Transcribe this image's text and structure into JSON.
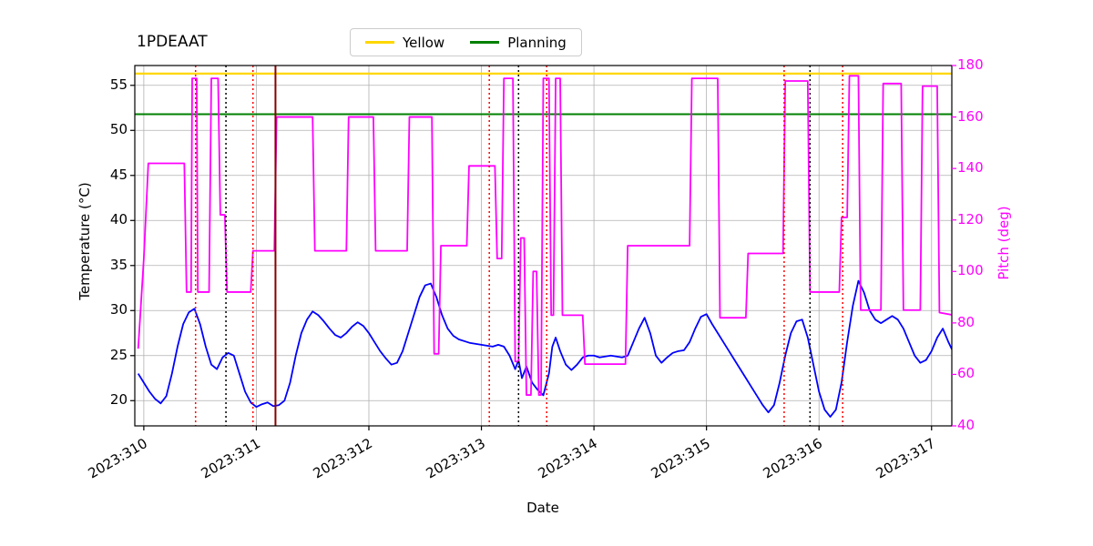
{
  "chart_data": {
    "type": "line",
    "title": "1PDEAAT",
    "xlabel": "Date",
    "ylabel_left": "Temperature (°C)",
    "ylabel_right": "Pitch (deg)",
    "legend": {
      "entries": [
        {
          "label": "Yellow",
          "color": "#ffd700"
        },
        {
          "label": "Planning",
          "color": "#008000"
        }
      ]
    },
    "axes": {
      "x": {
        "lim": [
          309.92,
          317.18
        ],
        "ticks": [
          310,
          311,
          312,
          313,
          314,
          315,
          316,
          317
        ],
        "tick_labels": [
          "2023:310",
          "2023:311",
          "2023:312",
          "2023:313",
          "2023:314",
          "2023:315",
          "2023:316",
          "2023:317"
        ]
      },
      "y_left": {
        "lim": [
          17.2,
          57.2
        ],
        "ticks": [
          20,
          25,
          30,
          35,
          40,
          45,
          50,
          55
        ],
        "color": "#000000"
      },
      "y_right": {
        "lim": [
          40,
          180
        ],
        "ticks": [
          40,
          60,
          80,
          100,
          120,
          140,
          160,
          180
        ],
        "color": "#ff00ff"
      }
    },
    "grid": {
      "on": true,
      "color": "#b0b0b0"
    },
    "hlines": [
      {
        "name": "Yellow",
        "y": 56.3,
        "color": "#ffd700",
        "width": 2.2
      },
      {
        "name": "Planning",
        "y": 51.8,
        "color": "#008000",
        "width": 2
      }
    ],
    "vlines": [
      {
        "x": 310.46,
        "color": "#ff0000",
        "style": "dotted"
      },
      {
        "x": 310.73,
        "color": "#000000",
        "style": "dotted"
      },
      {
        "x": 310.97,
        "color": "#ff0000",
        "style": "dotted"
      },
      {
        "x": 311.17,
        "color": "#8b0000",
        "style": "solid"
      },
      {
        "x": 313.07,
        "color": "#ff0000",
        "style": "dotted"
      },
      {
        "x": 313.33,
        "color": "#000000",
        "style": "dotted"
      },
      {
        "x": 313.58,
        "color": "#ff0000",
        "style": "dotted"
      },
      {
        "x": 315.69,
        "color": "#ff0000",
        "style": "dotted"
      },
      {
        "x": 315.92,
        "color": "#000000",
        "style": "dotted"
      },
      {
        "x": 316.21,
        "color": "#ff0000",
        "style": "dotted"
      }
    ],
    "series": [
      {
        "name": "Temperature",
        "axis": "left",
        "color": "#0000ff",
        "line_width": 1.8,
        "x": [
          309.95,
          310.0,
          310.05,
          310.1,
          310.15,
          310.2,
          310.25,
          310.3,
          310.35,
          310.4,
          310.45,
          310.5,
          310.55,
          310.6,
          310.65,
          310.7,
          310.75,
          310.8,
          310.85,
          310.9,
          310.95,
          311.0,
          311.05,
          311.1,
          311.15,
          311.2,
          311.25,
          311.3,
          311.35,
          311.4,
          311.45,
          311.5,
          311.55,
          311.6,
          311.65,
          311.7,
          311.75,
          311.8,
          311.85,
          311.9,
          311.95,
          312.0,
          312.05,
          312.1,
          312.15,
          312.2,
          312.25,
          312.3,
          312.35,
          312.4,
          312.45,
          312.5,
          312.55,
          312.6,
          312.65,
          312.7,
          312.75,
          312.8,
          312.85,
          312.9,
          312.95,
          313.0,
          313.05,
          313.1,
          313.15,
          313.2,
          313.25,
          313.3,
          313.33,
          313.36,
          313.4,
          313.45,
          313.5,
          313.55,
          313.6,
          313.63,
          313.66,
          313.7,
          313.75,
          313.8,
          313.85,
          313.9,
          313.95,
          314.0,
          314.05,
          314.1,
          314.15,
          314.2,
          314.25,
          314.3,
          314.35,
          314.4,
          314.45,
          314.5,
          314.55,
          314.6,
          314.65,
          314.7,
          314.75,
          314.8,
          314.85,
          314.9,
          314.95,
          315.0,
          315.05,
          315.1,
          315.15,
          315.2,
          315.25,
          315.3,
          315.35,
          315.4,
          315.45,
          315.5,
          315.55,
          315.6,
          315.65,
          315.7,
          315.75,
          315.8,
          315.85,
          315.9,
          315.95,
          316.0,
          316.05,
          316.1,
          316.15,
          316.2,
          316.25,
          316.3,
          316.35,
          316.4,
          316.45,
          316.5,
          316.55,
          316.6,
          316.65,
          316.7,
          316.75,
          316.8,
          316.85,
          316.9,
          316.95,
          317.0,
          317.05,
          317.1,
          317.15,
          317.2
        ],
        "y": [
          23.0,
          22.0,
          21.0,
          20.2,
          19.7,
          20.5,
          23.0,
          26.0,
          28.5,
          29.8,
          30.2,
          28.5,
          26.0,
          24.0,
          23.5,
          24.8,
          25.3,
          25.0,
          23.0,
          21.0,
          19.8,
          19.3,
          19.6,
          19.8,
          19.4,
          19.5,
          20.0,
          22.0,
          25.0,
          27.5,
          29.0,
          29.9,
          29.5,
          28.8,
          28.0,
          27.3,
          27.0,
          27.5,
          28.2,
          28.7,
          28.3,
          27.5,
          26.5,
          25.5,
          24.7,
          24.0,
          24.2,
          25.5,
          27.5,
          29.5,
          31.5,
          32.8,
          33.0,
          31.5,
          29.5,
          28.0,
          27.2,
          26.8,
          26.6,
          26.4,
          26.3,
          26.2,
          26.1,
          26.0,
          26.2,
          26.0,
          25.0,
          23.5,
          24.5,
          22.5,
          23.8,
          22.0,
          21.2,
          20.6,
          23.0,
          26.0,
          27.0,
          25.5,
          24.0,
          23.4,
          24.0,
          24.8,
          25.0,
          25.0,
          24.8,
          24.9,
          25.0,
          24.9,
          24.8,
          25.0,
          26.5,
          28.0,
          29.2,
          27.5,
          25.0,
          24.2,
          24.8,
          25.3,
          25.5,
          25.6,
          26.5,
          28.0,
          29.3,
          29.6,
          28.5,
          27.5,
          26.5,
          25.5,
          24.5,
          23.5,
          22.5,
          21.5,
          20.5,
          19.5,
          18.7,
          19.5,
          22.0,
          25.0,
          27.5,
          28.8,
          29.0,
          27.0,
          24.0,
          21.0,
          19.0,
          18.2,
          19.0,
          22.0,
          26.5,
          30.5,
          33.3,
          32.0,
          30.0,
          29.0,
          28.6,
          29.0,
          29.4,
          29.0,
          28.0,
          26.5,
          25.0,
          24.2,
          24.5,
          25.5,
          27.0,
          28.0,
          26.5,
          25.2
        ]
      },
      {
        "name": "Pitch",
        "axis": "right",
        "color": "#ff00ff",
        "line_width": 1.8,
        "x": [
          309.95,
          310.0,
          310.04,
          310.36,
          310.38,
          310.42,
          310.43,
          310.47,
          310.48,
          310.58,
          310.6,
          310.66,
          310.68,
          310.72,
          310.74,
          310.95,
          310.97,
          311.16,
          311.18,
          311.5,
          311.52,
          311.8,
          311.82,
          312.04,
          312.06,
          312.34,
          312.36,
          312.56,
          312.58,
          312.62,
          312.64,
          312.87,
          312.89,
          313.12,
          313.14,
          313.18,
          313.2,
          313.28,
          313.3,
          313.33,
          313.35,
          313.38,
          313.4,
          313.44,
          313.46,
          313.49,
          313.51,
          313.53,
          313.55,
          313.6,
          313.62,
          313.64,
          313.66,
          313.7,
          313.72,
          313.9,
          313.92,
          314.28,
          314.3,
          314.85,
          314.87,
          315.1,
          315.12,
          315.35,
          315.37,
          315.68,
          315.7,
          315.9,
          315.92,
          316.18,
          316.2,
          316.25,
          316.27,
          316.35,
          316.37,
          316.55,
          316.57,
          316.73,
          316.75,
          316.9,
          316.92,
          317.05,
          317.07,
          317.2
        ],
        "y": [
          70,
          105,
          142,
          142,
          92,
          92,
          175,
          175,
          92,
          92,
          175,
          175,
          122,
          122,
          92,
          92,
          108,
          108,
          160,
          160,
          108,
          108,
          160,
          160,
          108,
          108,
          160,
          160,
          68,
          68,
          110,
          110,
          141,
          141,
          105,
          105,
          175,
          175,
          65,
          65,
          113,
          113,
          52,
          52,
          100,
          100,
          52,
          52,
          175,
          175,
          83,
          83,
          175,
          175,
          83,
          83,
          64,
          64,
          110,
          110,
          175,
          175,
          82,
          82,
          107,
          107,
          174,
          174,
          92,
          92,
          121,
          121,
          176,
          176,
          85,
          85,
          173,
          173,
          85,
          85,
          172,
          172,
          84,
          83
        ]
      }
    ]
  }
}
